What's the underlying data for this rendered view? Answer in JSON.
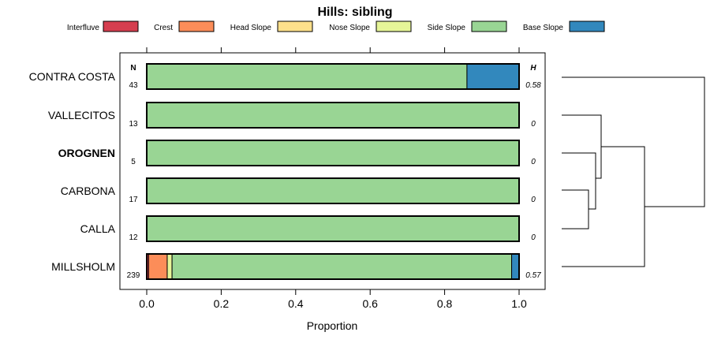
{
  "chart_data": {
    "type": "bar",
    "orientation": "horizontal-stacked",
    "title": "Hills: sibling",
    "xlabel": "Proportion",
    "ylabel": "",
    "xlim": [
      0,
      1
    ],
    "x_ticks": [
      0.0,
      0.2,
      0.4,
      0.6,
      0.8,
      1.0
    ],
    "x_tick_labels": [
      "0.0",
      "0.2",
      "0.4",
      "0.6",
      "0.8",
      "1.0"
    ],
    "n_header": "N",
    "h_header": "H",
    "legend": [
      {
        "name": "Interfluve",
        "color": "#d53e4f"
      },
      {
        "name": "Crest",
        "color": "#fc8d59"
      },
      {
        "name": "Head Slope",
        "color": "#fee08b"
      },
      {
        "name": "Nose Slope",
        "color": "#e6f598"
      },
      {
        "name": "Side Slope",
        "color": "#99d594"
      },
      {
        "name": "Base Slope",
        "color": "#3288bd"
      }
    ],
    "categories": [
      "CONTRA COSTA",
      "VALLECITOS",
      "OROGNEN",
      "CARBONA",
      "CALLA",
      "MILLSHOLM"
    ],
    "highlighted": "OROGNEN",
    "rows": [
      {
        "name": "CONTRA COSTA",
        "n": "43",
        "h": "0.58",
        "values": [
          0,
          0,
          0,
          0,
          0.86,
          0.14
        ]
      },
      {
        "name": "VALLECITOS",
        "n": "13",
        "h": "0",
        "values": [
          0,
          0,
          0,
          0,
          1.0,
          0
        ]
      },
      {
        "name": "OROGNEN",
        "n": "5",
        "h": "0",
        "values": [
          0,
          0,
          0,
          0,
          1.0,
          0
        ]
      },
      {
        "name": "CARBONA",
        "n": "17",
        "h": "0",
        "values": [
          0,
          0,
          0,
          0,
          1.0,
          0
        ]
      },
      {
        "name": "CALLA",
        "n": "12",
        "h": "0",
        "values": [
          0,
          0,
          0,
          0,
          1.0,
          0
        ]
      },
      {
        "name": "MILLSHOLM",
        "n": "239",
        "h": "0.57",
        "values": [
          0.005,
          0.05,
          0,
          0.013,
          0.912,
          0.02
        ]
      }
    ],
    "dendrogram": "hierarchical clustering of the six rows"
  }
}
